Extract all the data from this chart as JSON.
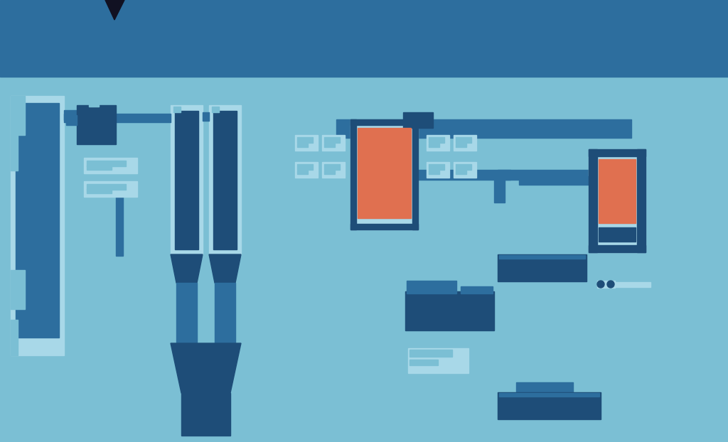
{
  "dark_blue": "#1e4d78",
  "mid_blue": "#2d6e9e",
  "light_blue": "#7bbfd4",
  "lighter_blue": "#a8d8e8",
  "orange": "#e07050",
  "white": "#ffffff",
  "bg_header_color": "#2d6e9e",
  "bg_body_color": "#7bbfd4"
}
